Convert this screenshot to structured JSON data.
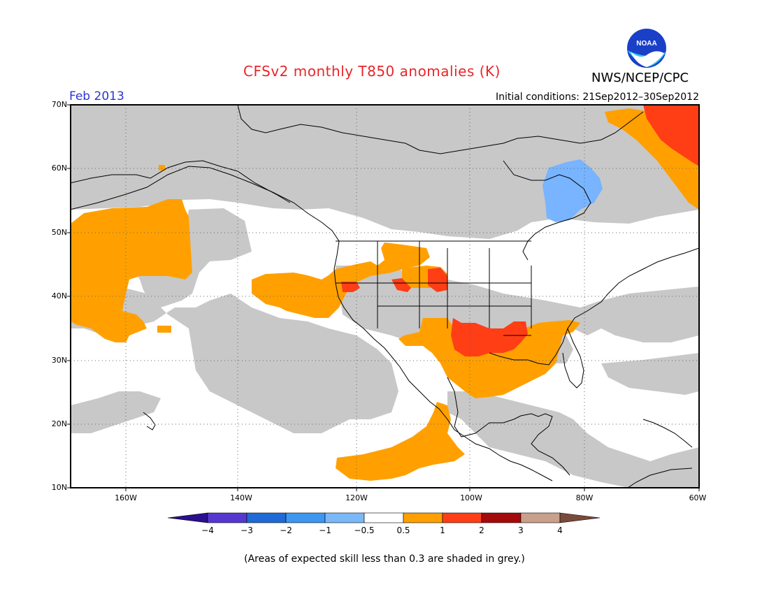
{
  "header": {
    "title": "CFSv2 monthly T850 anomalies (K)",
    "agency": "NWS/NCEP/CPC",
    "logo_text": "NOAA",
    "month": "Feb 2013",
    "initial_conditions": "Initial conditions: 21Sep2012–30Sep2012"
  },
  "map": {
    "lat_labels": [
      "70N",
      "60N",
      "50N",
      "40N",
      "30N",
      "20N",
      "10N"
    ],
    "lon_labels": [
      "160W",
      "140W",
      "120W",
      "100W",
      "80W",
      "60W"
    ],
    "extent": {
      "lon": [
        -172,
        -60
      ],
      "lat": [
        10,
        70
      ]
    },
    "colors": {
      "skill_grey": "#c8c8c8",
      "anom_0_5_1": "#ffa000",
      "anom_1_2": "#ff3e16",
      "anom_neg_0_5_neg_1": "#78b4ff",
      "coast": "#000000"
    }
  },
  "colorbar": {
    "labels": [
      "−4",
      "−3",
      "−2",
      "−1",
      "−0.5",
      "0.5",
      "1",
      "2",
      "3",
      "4"
    ],
    "colors": [
      "#2a0f8f",
      "#5538d0",
      "#1f6ad6",
      "#3d96f0",
      "#7ab8f8",
      "#ffffff",
      "#ffa000",
      "#ff3e16",
      "#a50a0a",
      "#c9a08c",
      "#7a4a3a"
    ]
  },
  "footnote": "(Areas of expected skill less than 0.3 are shaded in grey.)"
}
